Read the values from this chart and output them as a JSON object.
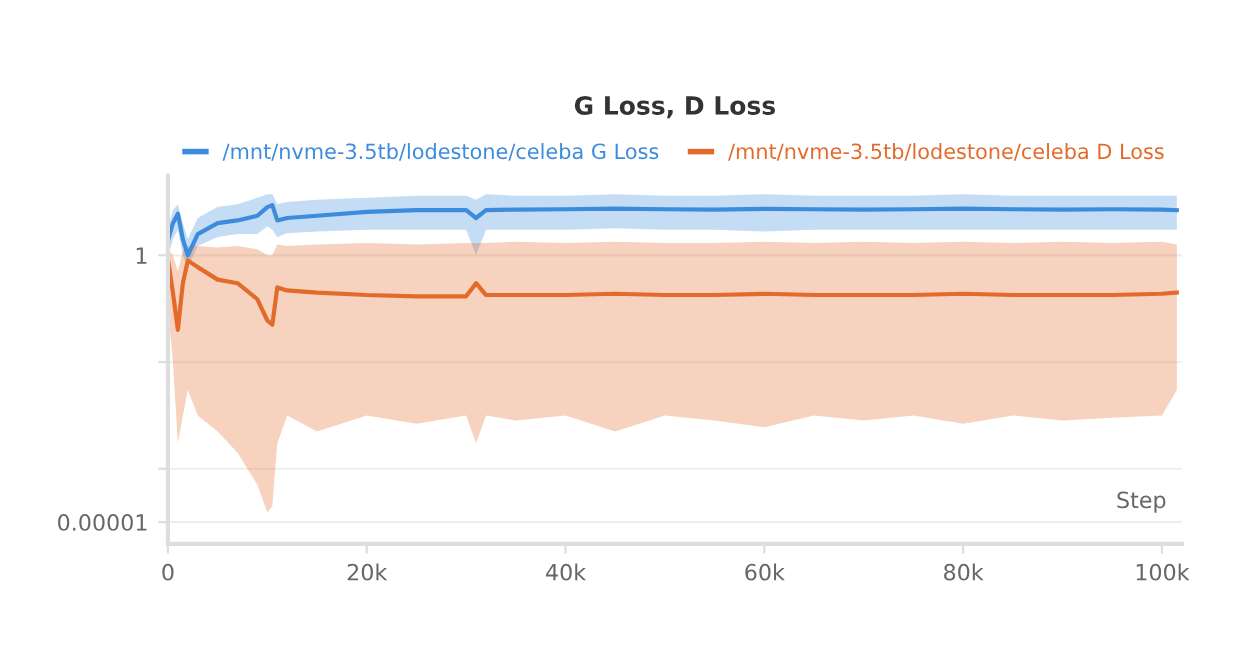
{
  "chart_data": {
    "type": "line",
    "title": "G Loss, D Loss",
    "xlabel": "Step",
    "log": "y",
    "grid": "y",
    "legend": "top",
    "marker": "none",
    "line_style": "solid",
    "xlim": [
      0,
      102000
    ],
    "ylim": [
      3.9e-06,
      31
    ],
    "xticks": [
      0,
      {
        "value": 20000,
        "label": "20k"
      },
      {
        "value": 40000,
        "label": "40k"
      },
      {
        "value": 60000,
        "label": "60k"
      },
      {
        "value": 80000,
        "label": "80k"
      },
      {
        "value": 100000,
        "label": "100k"
      }
    ],
    "yticks": [
      {
        "value": 1e-05,
        "label": "0.00001"
      },
      {
        "value": 0.0001,
        "label": null
      },
      {
        "value": 0.01,
        "label": null
      },
      1
    ],
    "series": [
      {
        "name": "/mnt/nvme-3.5tb/lodestone/celeba G Loss",
        "color": "#3d8bdc",
        "x": [
          0,
          500,
          1000,
          1500,
          2000,
          3000,
          5000,
          7000,
          9000,
          10000,
          10500,
          11000,
          12000,
          15000,
          20000,
          25000,
          30000,
          31000,
          32000,
          35000,
          40000,
          45000,
          50000,
          55000,
          60000,
          65000,
          70000,
          75000,
          80000,
          85000,
          90000,
          95000,
          100000,
          101500
        ],
        "values": [
          1.9,
          4,
          6,
          2,
          1,
          2.5,
          4,
          4.5,
          5.5,
          8,
          8.7,
          4.5,
          5,
          5.5,
          6.5,
          7,
          7,
          5,
          7,
          7.2,
          7.3,
          7.5,
          7.3,
          7.2,
          7.4,
          7.3,
          7.2,
          7.3,
          7.5,
          7.3,
          7.2,
          7.3,
          7.2,
          7
        ],
        "lower": [
          0.9,
          2,
          3,
          1,
          0.6,
          1.5,
          2.2,
          2.5,
          2.5,
          3.5,
          3,
          2.2,
          2.6,
          2.8,
          3,
          3,
          3,
          1,
          3,
          3,
          3,
          3.2,
          3,
          3,
          2.8,
          3,
          3,
          3,
          3,
          3,
          3,
          3,
          3,
          3
        ],
        "upper": [
          3,
          7,
          9,
          4,
          2,
          5,
          8,
          9,
          12,
          14,
          14,
          9,
          10,
          11,
          12,
          13,
          13,
          11,
          14,
          13,
          13,
          14,
          13,
          13,
          14,
          13,
          13,
          13,
          14,
          13,
          13,
          13,
          13,
          13
        ]
      },
      {
        "name": "/mnt/nvme-3.5tb/lodestone/celeba D Loss",
        "color": "#e26b2b",
        "x": [
          0,
          500,
          1000,
          1500,
          2000,
          3000,
          5000,
          7000,
          9000,
          10000,
          10500,
          11000,
          12000,
          15000,
          20000,
          25000,
          30000,
          31000,
          32000,
          35000,
          40000,
          45000,
          50000,
          55000,
          60000,
          65000,
          70000,
          75000,
          80000,
          85000,
          90000,
          95000,
          100000,
          101500
        ],
        "values": [
          0.85,
          0.2,
          0.04,
          0.3,
          0.8,
          0.6,
          0.35,
          0.3,
          0.15,
          0.06,
          0.05,
          0.25,
          0.22,
          0.2,
          0.18,
          0.17,
          0.17,
          0.3,
          0.18,
          0.18,
          0.18,
          0.19,
          0.18,
          0.18,
          0.19,
          0.18,
          0.18,
          0.18,
          0.19,
          0.18,
          0.18,
          0.18,
          0.19,
          0.2
        ],
        "lower": [
          0.1,
          0.01,
          0.0003,
          0.001,
          0.003,
          0.001,
          0.0005,
          0.0002,
          5e-05,
          1.5e-05,
          2e-05,
          0.0003,
          0.001,
          0.0005,
          0.001,
          0.0007,
          0.001,
          0.0003,
          0.001,
          0.0008,
          0.001,
          0.0005,
          0.001,
          0.0008,
          0.0006,
          0.001,
          0.0008,
          0.001,
          0.0007,
          0.001,
          0.0008,
          0.0009,
          0.001,
          0.003
        ],
        "upper": [
          1.3,
          1,
          0.5,
          1.2,
          1.5,
          1.5,
          1.4,
          1.5,
          1.3,
          1,
          1,
          1.6,
          1.5,
          1.6,
          1.7,
          1.6,
          1.7,
          1.7,
          1.7,
          1.8,
          1.7,
          1.8,
          1.7,
          1.7,
          1.8,
          1.7,
          1.8,
          1.7,
          1.8,
          1.7,
          1.8,
          1.7,
          1.8,
          1.6
        ]
      }
    ]
  }
}
